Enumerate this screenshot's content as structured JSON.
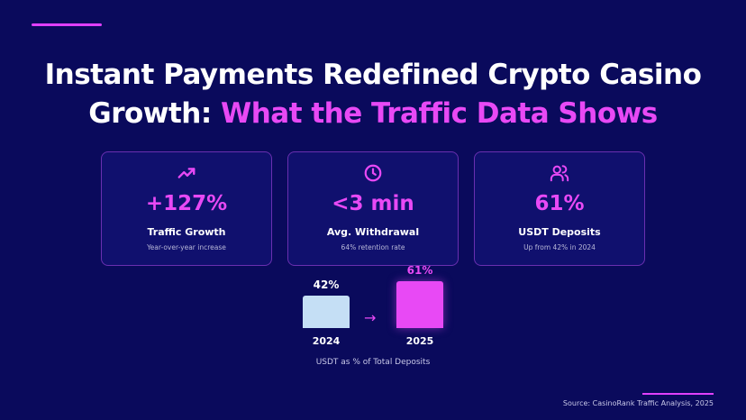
{
  "title": {
    "line1": "Instant Payments Redefined Crypto Casino",
    "line2_plain": "Growth: ",
    "line2_highlight": "What the Traffic Data Shows"
  },
  "cards": [
    {
      "icon": "trending-up-icon",
      "value": "+127%",
      "label": "Traffic Growth",
      "sub": "Year-over-year increase"
    },
    {
      "icon": "clock-icon",
      "value": "<3 min",
      "label": "Avg. Withdrawal",
      "sub": "64% retention rate"
    },
    {
      "icon": "users-icon",
      "value": "61%",
      "label": "USDT Deposits",
      "sub": "Up from 42% in 2024"
    }
  ],
  "chart_data": {
    "type": "bar",
    "categories": [
      "2024",
      "2025"
    ],
    "values": [
      42,
      61
    ],
    "value_labels": [
      "42%",
      "61%"
    ],
    "colors": [
      "#c5dff5",
      "#e849f5"
    ],
    "caption": "USDT as % of Total Deposits",
    "arrow": "→"
  },
  "source": "Source: CasinoRank Traffic Analysis, 2025",
  "colors": {
    "background": "#0a0a5c",
    "accent": "#e849f5",
    "card": "#10106e"
  }
}
